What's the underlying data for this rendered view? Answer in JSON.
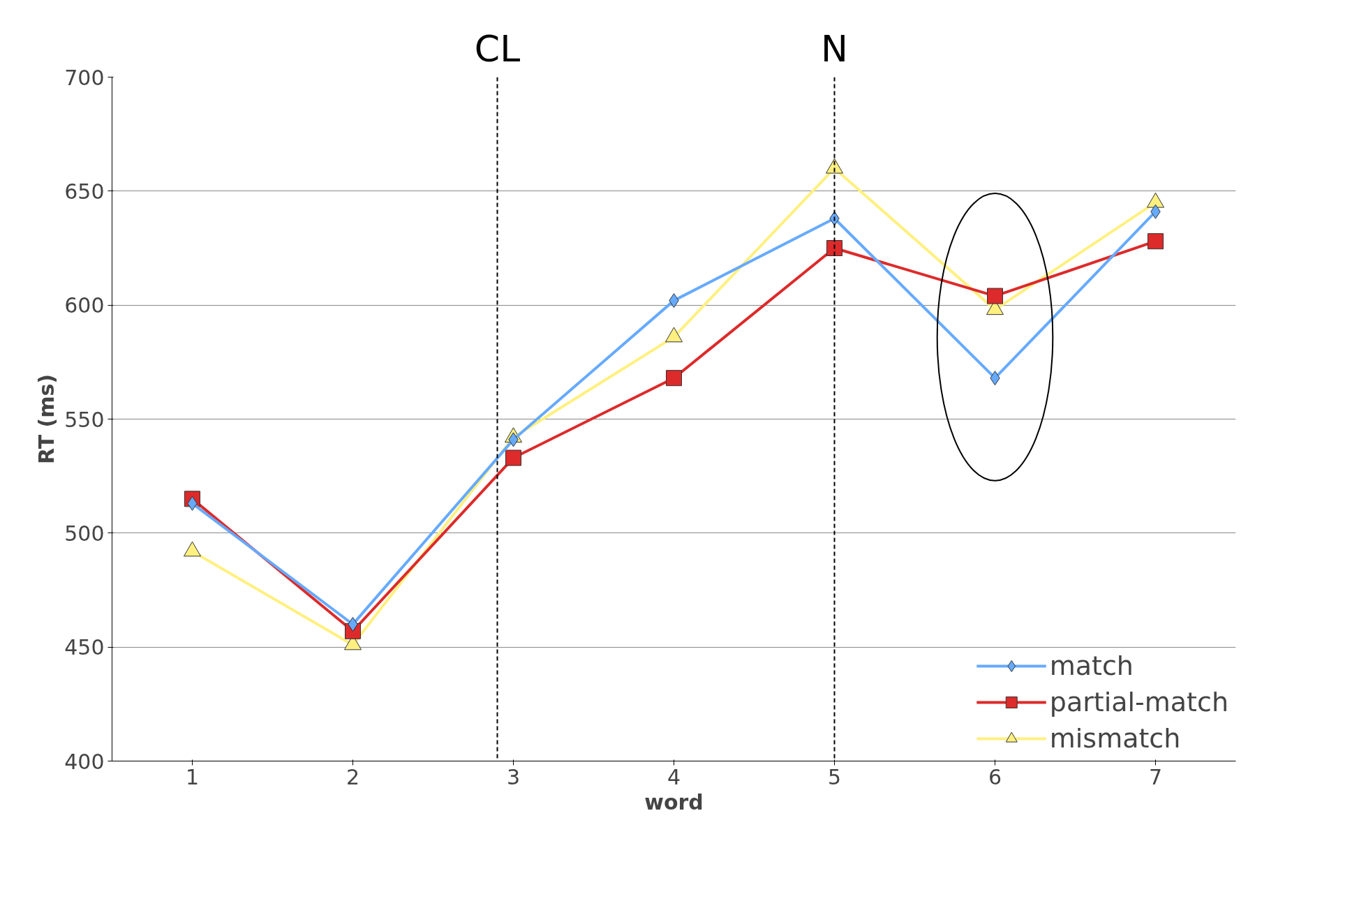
{
  "chart_data": {
    "type": "line",
    "xlabel": "word",
    "ylabel": "RT (ms)",
    "x": [
      1,
      2,
      3,
      4,
      5,
      6,
      7
    ],
    "xlim": [
      0.5,
      7.5
    ],
    "xticks": [
      1,
      2,
      3,
      4,
      5,
      6,
      7
    ],
    "ylim": [
      400,
      700
    ],
    "yticks": [
      400,
      450,
      500,
      550,
      600,
      650,
      700
    ],
    "grid": "y",
    "legend": "bottom right",
    "series": [
      {
        "name": "match",
        "color": "#66aaff",
        "marker": "diamond",
        "values": [
          513,
          460,
          541,
          602,
          638,
          568,
          641
        ]
      },
      {
        "name": "partial-match",
        "color": "#dd2a2a",
        "marker": "square",
        "values": [
          515,
          457,
          533,
          568,
          625,
          604,
          628
        ]
      },
      {
        "name": "mismatch",
        "color": "#fff080",
        "marker": "triangle",
        "values": [
          492,
          451,
          542,
          586,
          660,
          598,
          645
        ]
      }
    ],
    "ref_lines": [
      {
        "axis": "x",
        "value": 2.9,
        "label": "CL",
        "line_style": "dashed"
      },
      {
        "axis": "x",
        "value": 5,
        "label": "N",
        "line_style": "dashed"
      }
    ]
  }
}
